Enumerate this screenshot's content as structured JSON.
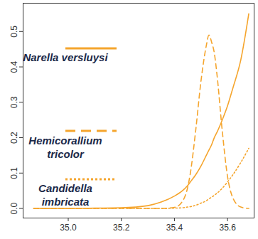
{
  "chart_data": {
    "type": "line",
    "x": [
      34.87,
      34.95,
      35.0,
      35.1,
      35.2,
      35.3,
      35.35,
      35.4,
      35.43,
      35.45,
      35.46,
      35.48,
      35.5,
      35.52,
      35.53,
      35.54,
      35.55,
      35.56,
      35.58,
      35.6,
      35.62,
      35.65,
      35.68
    ],
    "series": [
      {
        "name": "Narella versluysi",
        "color": "#f5a52d",
        "line_style": "solid",
        "values": [
          0,
          0,
          0,
          0.001,
          0.002,
          0.008,
          0.018,
          0.035,
          0.05,
          0.065,
          0.075,
          0.095,
          0.12,
          0.15,
          0.165,
          0.18,
          0.2,
          0.215,
          0.25,
          0.29,
          0.34,
          0.42,
          0.55
        ]
      },
      {
        "name": "Hemicorallium tricolor",
        "color": "#f5a52d",
        "line_style": "dashed",
        "values": [
          0,
          0,
          0,
          0,
          0,
          0,
          0,
          0.003,
          0.02,
          0.06,
          0.1,
          0.22,
          0.36,
          0.46,
          0.49,
          0.47,
          0.44,
          0.38,
          0.22,
          0.09,
          0.03,
          0.004,
          0
        ]
      },
      {
        "name": "Candidella imbricata",
        "color": "#f5a52d",
        "line_style": "dotted",
        "values": [
          0,
          0,
          0,
          0,
          0,
          0,
          0,
          0.001,
          0.002,
          0.004,
          0.005,
          0.009,
          0.015,
          0.022,
          0.027,
          0.032,
          0.037,
          0.043,
          0.057,
          0.075,
          0.095,
          0.13,
          0.17
        ]
      }
    ],
    "xlim": [
      34.83,
      35.7
    ],
    "ylim": [
      -0.027,
      0.58
    ],
    "xticks": [
      {
        "value": 35,
        "label": "35.0"
      },
      35.2,
      35.4,
      35.6
    ],
    "yticks": [
      {
        "value": 0,
        "label": "0.0"
      },
      0.1,
      0.2,
      0.3,
      0.4,
      0.5
    ],
    "legend": "top-left",
    "grid": false
  }
}
